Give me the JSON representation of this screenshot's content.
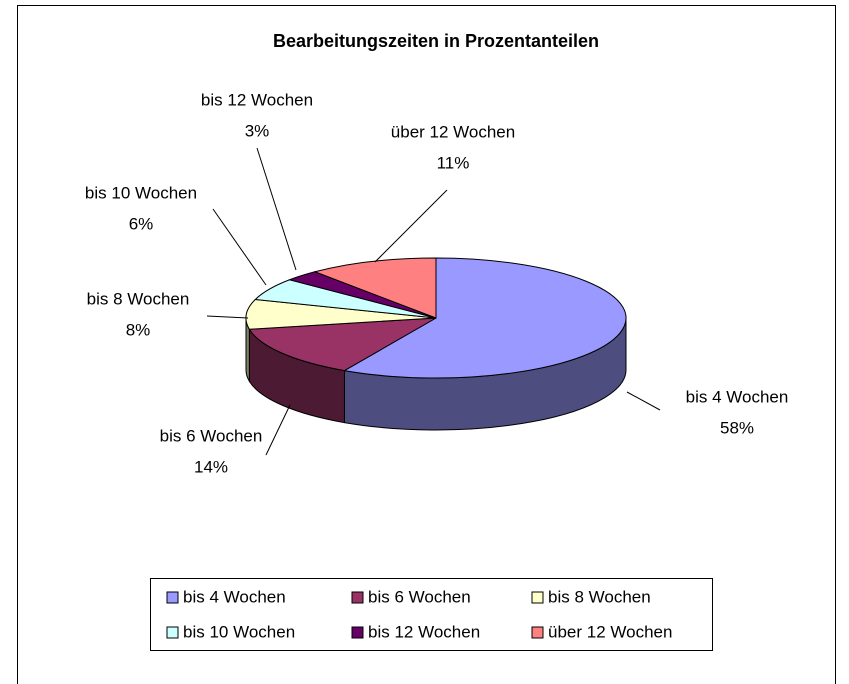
{
  "chart_data": {
    "type": "pie3d",
    "title": "Bearbeitungszeiten in Prozentanteilen",
    "categories": [
      "bis 4 Wochen",
      "bis 6 Wochen",
      "bis 8 Wochen",
      "bis 10 Wochen",
      "bis 12 Wochen",
      "über 12 Wochen"
    ],
    "values": [
      58,
      14,
      8,
      6,
      3,
      11
    ],
    "value_labels": [
      "58%",
      "14%",
      "8%",
      "6%",
      "3%",
      "11%"
    ],
    "colors": [
      "#9999ff",
      "#993366",
      "#ffffcc",
      "#ccffff",
      "#660066",
      "#ff8080"
    ],
    "legend": "bottom"
  }
}
